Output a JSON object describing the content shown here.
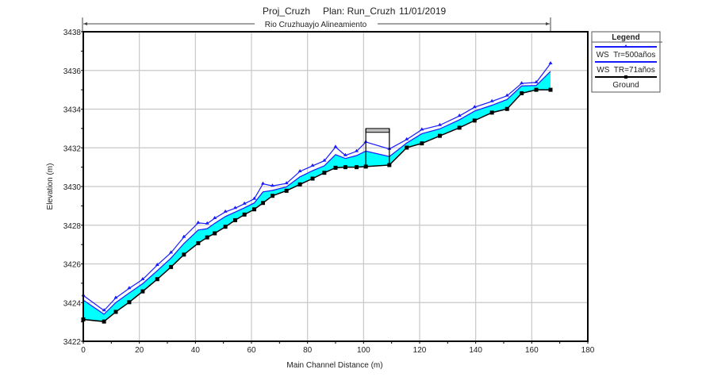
{
  "chart_data": {
    "type": "line",
    "title": {
      "project": "Proj_Cruzh",
      "plan": "Plan: Run_Cruzh",
      "date": "11/01/2019"
    },
    "reach_label": "Rio Cruzhuayjo Alineamiento",
    "xlabel": "Main Channel Distance (m)",
    "ylabel": "Elevation (m)",
    "xlim": [
      0,
      180
    ],
    "ylim": [
      3422,
      3438
    ],
    "xticks": [
      0,
      20,
      40,
      60,
      80,
      100,
      120,
      140,
      160,
      180
    ],
    "yticks": [
      3422,
      3424,
      3426,
      3428,
      3430,
      3432,
      3434,
      3436,
      3438
    ],
    "grid": true,
    "legend_title": "Legend",
    "legend_placement": "right",
    "x": [
      0,
      7.4,
      11.6,
      16.4,
      21.2,
      26.4,
      31.3,
      35.9,
      41.0,
      44.2,
      46.9,
      50.7,
      54.2,
      57.5,
      61.0,
      64.1,
      67.5,
      72.5,
      77.3,
      81.8,
      86.0,
      90.0,
      93.5,
      97.5,
      100.8,
      109.2,
      115.4,
      120.8,
      127.2,
      134.2,
      139.6,
      145.8,
      151.2,
      156.4,
      161.6,
      166.7
    ],
    "series": [
      {
        "name": "WS  Tr=500años",
        "color": "#1a1aff",
        "marker": "triangle",
        "values": [
          3424.37,
          3423.59,
          3424.24,
          3424.74,
          3425.2,
          3425.94,
          3426.58,
          3427.39,
          3428.12,
          3428.08,
          3428.36,
          3428.69,
          3428.88,
          3429.11,
          3429.36,
          3430.14,
          3430.03,
          3430.16,
          3430.78,
          3431.07,
          3431.33,
          3432.04,
          3431.61,
          3431.82,
          3432.3,
          3431.94,
          3432.43,
          3432.94,
          3433.17,
          3433.65,
          3434.1,
          3434.4,
          3434.69,
          3435.33,
          3435.38,
          3436.36
        ]
      },
      {
        "name": "WS  TR=71años",
        "color": "#1a1aff",
        "marker": "none",
        "fill": "#00ffff",
        "values": [
          3424.13,
          3423.4,
          3424.0,
          3424.5,
          3424.98,
          3425.65,
          3426.3,
          3427.05,
          3427.75,
          3427.82,
          3428.1,
          3428.45,
          3428.68,
          3428.9,
          3429.15,
          3429.72,
          3429.8,
          3429.98,
          3430.5,
          3430.82,
          3431.07,
          3431.65,
          3431.45,
          3431.6,
          3431.83,
          3431.55,
          3432.25,
          3432.73,
          3432.98,
          3433.45,
          3433.9,
          3434.2,
          3434.5,
          3435.2,
          3435.22,
          3435.95
        ]
      },
      {
        "name": "Ground",
        "color": "#000000",
        "marker": "square",
        "values": [
          3423.13,
          3423.02,
          3423.52,
          3424.02,
          3424.58,
          3425.21,
          3425.84,
          3426.48,
          3427.07,
          3427.37,
          3427.58,
          3427.92,
          3428.26,
          3428.55,
          3428.82,
          3429.15,
          3429.52,
          3429.78,
          3430.11,
          3430.41,
          3430.71,
          3430.97,
          3431.0,
          3431.0,
          3431.03,
          3431.11,
          3432.01,
          3432.23,
          3432.62,
          3433.04,
          3433.41,
          3433.82,
          3434.01,
          3434.82,
          3435.0,
          3435.0
        ]
      }
    ],
    "structure": {
      "x_start": 100.8,
      "x_end": 109.2,
      "deck_top": 3433.0,
      "deck_bottom": 3432.8
    }
  }
}
